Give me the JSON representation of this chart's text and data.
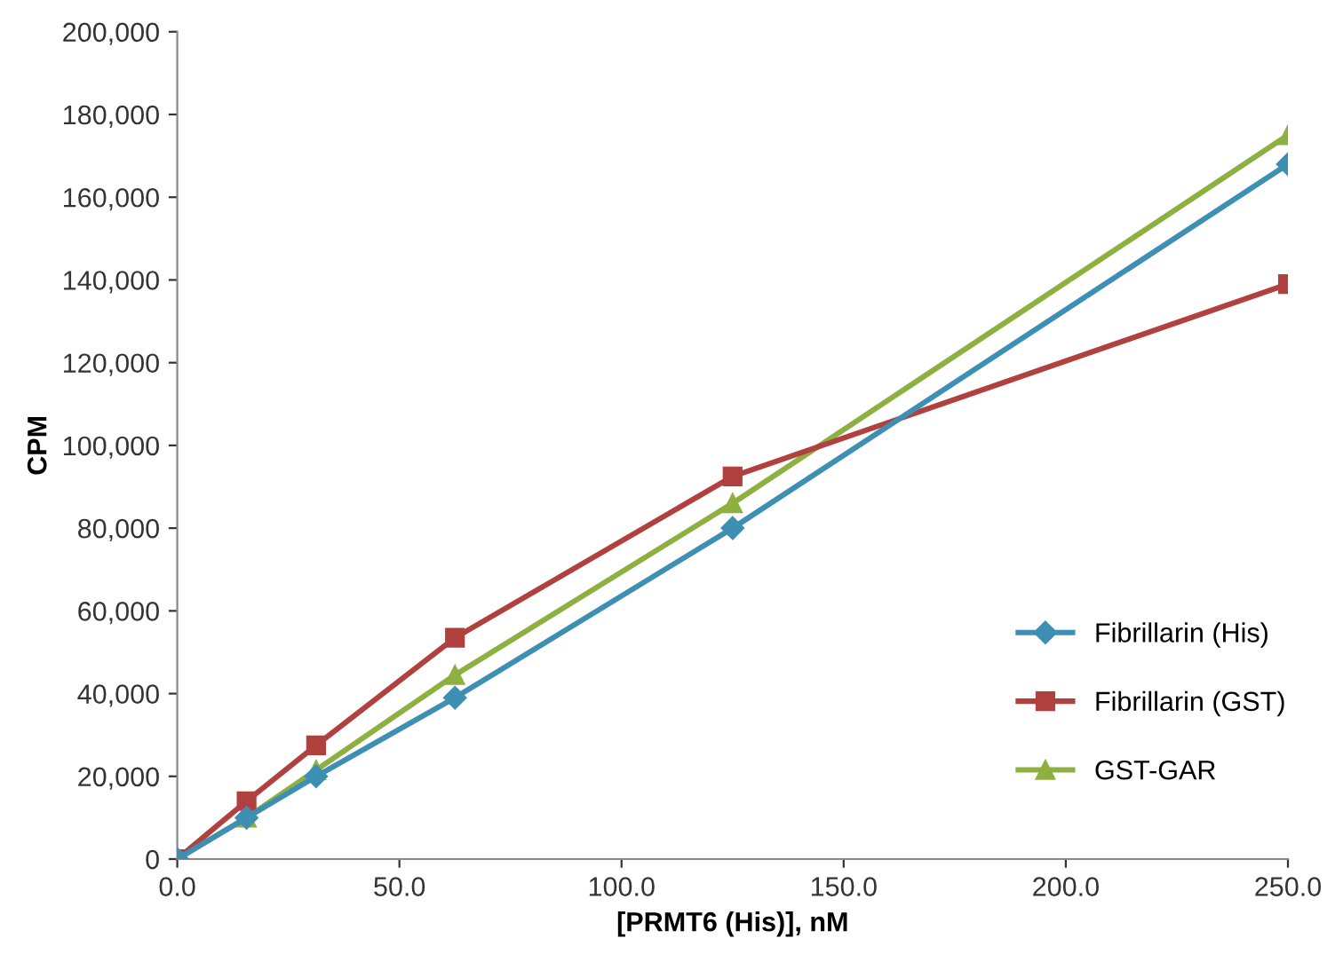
{
  "chart_data": {
    "type": "line",
    "xlabel": "[PRMT6 (His)], nM",
    "ylabel": "CPM",
    "x": [
      0,
      15.6,
      31.25,
      62.5,
      125,
      250
    ],
    "series": [
      {
        "name": "Fibrillarin (His)",
        "color": "#3d8fb3",
        "marker": "diamond",
        "values": [
          0,
          10000,
          20000,
          39000,
          80000,
          168000
        ]
      },
      {
        "name": "Fibrillarin (GST)",
        "color": "#b0413e",
        "marker": "square",
        "values": [
          0,
          14000,
          27500,
          53500,
          92500,
          139000
        ]
      },
      {
        "name": "GST-GAR",
        "color": "#8db040",
        "marker": "triangle",
        "values": [
          0,
          10000,
          21500,
          44500,
          86000,
          175000
        ]
      }
    ],
    "xlim": [
      0,
      250
    ],
    "xticks": [
      {
        "value": 0,
        "label": "0.0"
      },
      {
        "value": 50,
        "label": "50.0"
      },
      {
        "value": 100,
        "label": "100.0"
      },
      {
        "value": 150,
        "label": "150.0"
      },
      {
        "value": 200,
        "label": "200.0"
      },
      {
        "value": 250,
        "label": "250.0"
      }
    ],
    "ylim": [
      0,
      200000
    ],
    "yticks": [
      {
        "value": 0,
        "label": "0"
      },
      {
        "value": 20000,
        "label": "20,000"
      },
      {
        "value": 40000,
        "label": "40,000"
      },
      {
        "value": 60000,
        "label": "60,000"
      },
      {
        "value": 80000,
        "label": "80,000"
      },
      {
        "value": 100000,
        "label": "100,000"
      },
      {
        "value": 120000,
        "label": "120,000"
      },
      {
        "value": 140000,
        "label": "140,000"
      },
      {
        "value": 160000,
        "label": "160,000"
      },
      {
        "value": 180000,
        "label": "180,000"
      },
      {
        "value": 200000,
        "label": "200,000"
      }
    ],
    "grid": false,
    "legend": "bottom right",
    "line_style": "solid"
  }
}
